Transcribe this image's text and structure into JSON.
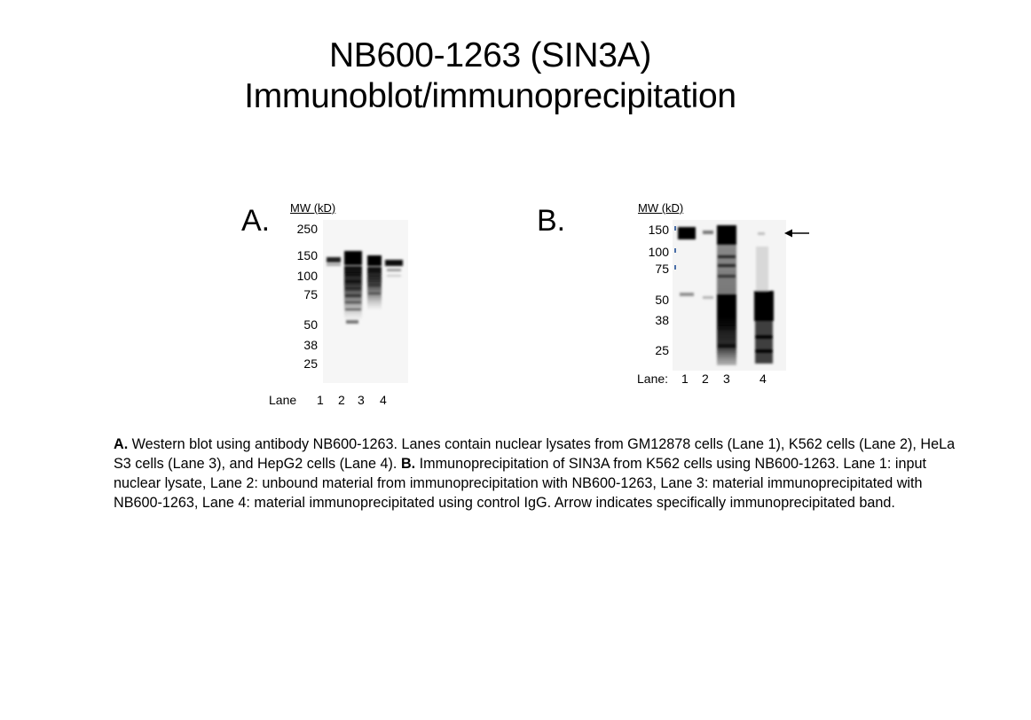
{
  "title": {
    "line1": "NB600-1263 (SIN3A)",
    "line2": "Immunoblot/immunoprecipitation"
  },
  "panel_a": {
    "letter": "A.",
    "mw_header": "MW (kD)",
    "mw_labels": [
      "250",
      "150",
      "100",
      "75",
      "50",
      "38",
      "25"
    ],
    "lane_label": "Lane",
    "lanes": [
      "1",
      "2",
      "3",
      "4"
    ]
  },
  "panel_b": {
    "letter": "B.",
    "mw_header": "MW (kD)",
    "mw_labels": [
      "150",
      "100",
      "75",
      "50",
      "38",
      "25"
    ],
    "lane_label": "Lane:",
    "lanes": [
      "1",
      "2",
      "3",
      "4"
    ]
  },
  "caption": {
    "a_label": "A.",
    "a_text": " Western blot using antibody NB600-1263. Lanes contain nuclear lysates from GM12878 cells (Lane 1), K562 cells (Lane 2), HeLa S3 cells (Lane 3), and HepG2 cells (Lane 4).  ",
    "b_label": "B.",
    "b_text": " Immunoprecipitation of SIN3A from K562 cells using NB600-1263.  Lane 1: input nuclear lysate, Lane 2:  unbound material from immunoprecipitation with NB600-1263, Lane 3: material immunoprecipitated with NB600-1263, Lane 4: material immunoprecipitated using control IgG.  Arrow indicates specifically immunoprecipitated band."
  }
}
